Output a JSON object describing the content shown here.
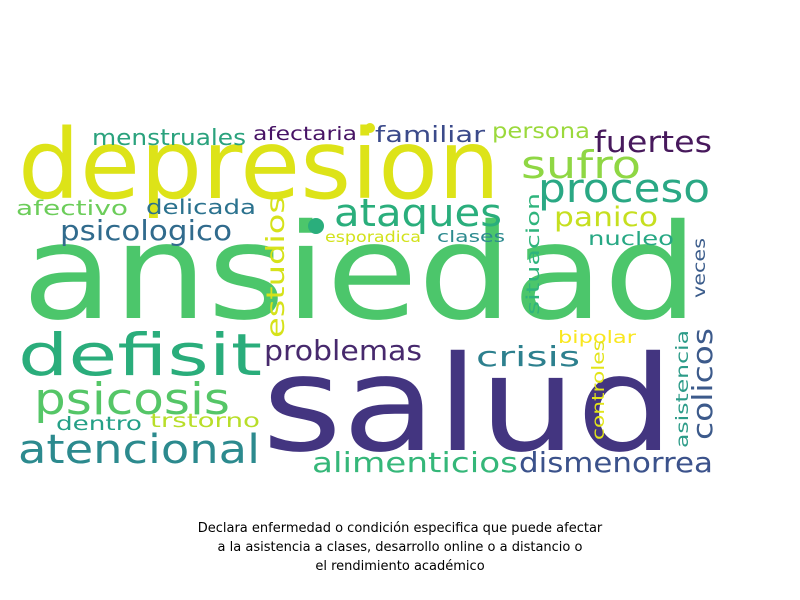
{
  "chart_data": {
    "type": "wordcloud",
    "caption": [
      "Declara enfermedad o condición especifica que puede afectar",
      "a la asistencia a clases, desarrollo online o a distancio o",
      "el rendimiento académico"
    ],
    "words": [
      {
        "text": "ansiedad",
        "color": "#4cc66b",
        "orientation": "horizontal"
      },
      {
        "text": "salud",
        "color": "#433580",
        "orientation": "horizontal"
      },
      {
        "text": "depresion",
        "color": "#dde318",
        "orientation": "horizontal"
      },
      {
        "text": "defisit",
        "color": "#2aad7b",
        "orientation": "horizontal"
      },
      {
        "text": "atencional",
        "color": "#2c8a8e",
        "orientation": "horizontal"
      },
      {
        "text": "psicosis",
        "color": "#55c667",
        "orientation": "horizontal"
      },
      {
        "text": "proceso",
        "color": "#2aa884",
        "orientation": "horizontal"
      },
      {
        "text": "sufro",
        "color": "#8fd744",
        "orientation": "horizontal"
      },
      {
        "text": "ataques",
        "color": "#2aae7c",
        "orientation": "horizontal"
      },
      {
        "text": "fuertes",
        "color": "#47195c",
        "orientation": "horizontal"
      },
      {
        "text": "problemas",
        "color": "#47296d",
        "orientation": "horizontal"
      },
      {
        "text": "crisis",
        "color": "#2d808e",
        "orientation": "horizontal"
      },
      {
        "text": "alimenticios",
        "color": "#35b779",
        "orientation": "horizontal"
      },
      {
        "text": "dismenorrea",
        "color": "#3b528b",
        "orientation": "horizontal"
      },
      {
        "text": "colicos",
        "color": "#3c5a8b",
        "orientation": "vertical"
      },
      {
        "text": "psicologico",
        "color": "#316b8d",
        "orientation": "horizontal"
      },
      {
        "text": "estudios",
        "color": "#d6e21a",
        "orientation": "vertical"
      },
      {
        "text": "panico",
        "color": "#c6df1f",
        "orientation": "horizontal"
      },
      {
        "text": "menstruales",
        "color": "#2aa27d",
        "orientation": "horizontal"
      },
      {
        "text": "familiar",
        "color": "#3b4a8a",
        "orientation": "horizontal"
      },
      {
        "text": "persona",
        "color": "#9bd93c",
        "orientation": "horizontal"
      },
      {
        "text": "afectaria",
        "color": "#471365",
        "orientation": "horizontal"
      },
      {
        "text": "afectivo",
        "color": "#6ccd5a",
        "orientation": "horizontal"
      },
      {
        "text": "delicada",
        "color": "#2b728e",
        "orientation": "horizontal"
      },
      {
        "text": "nucleo",
        "color": "#27a884",
        "orientation": "horizontal"
      },
      {
        "text": "situacion",
        "color": "#2fb47c",
        "orientation": "vertical"
      },
      {
        "text": "veces",
        "color": "#3b5c8b",
        "orientation": "vertical"
      },
      {
        "text": "esporadica",
        "color": "#d2e21b",
        "orientation": "horizontal"
      },
      {
        "text": "clases",
        "color": "#2c8a8e",
        "orientation": "horizontal"
      },
      {
        "text": "bipolar",
        "color": "#f9e71f",
        "orientation": "horizontal"
      },
      {
        "text": "controles",
        "color": "#e2e419",
        "orientation": "vertical"
      },
      {
        "text": "asistencia",
        "color": "#2c9b88",
        "orientation": "vertical"
      },
      {
        "text": "dentro",
        "color": "#25a087",
        "orientation": "horizontal"
      },
      {
        "text": "trstorno",
        "color": "#b8de29",
        "orientation": "horizontal"
      }
    ]
  }
}
